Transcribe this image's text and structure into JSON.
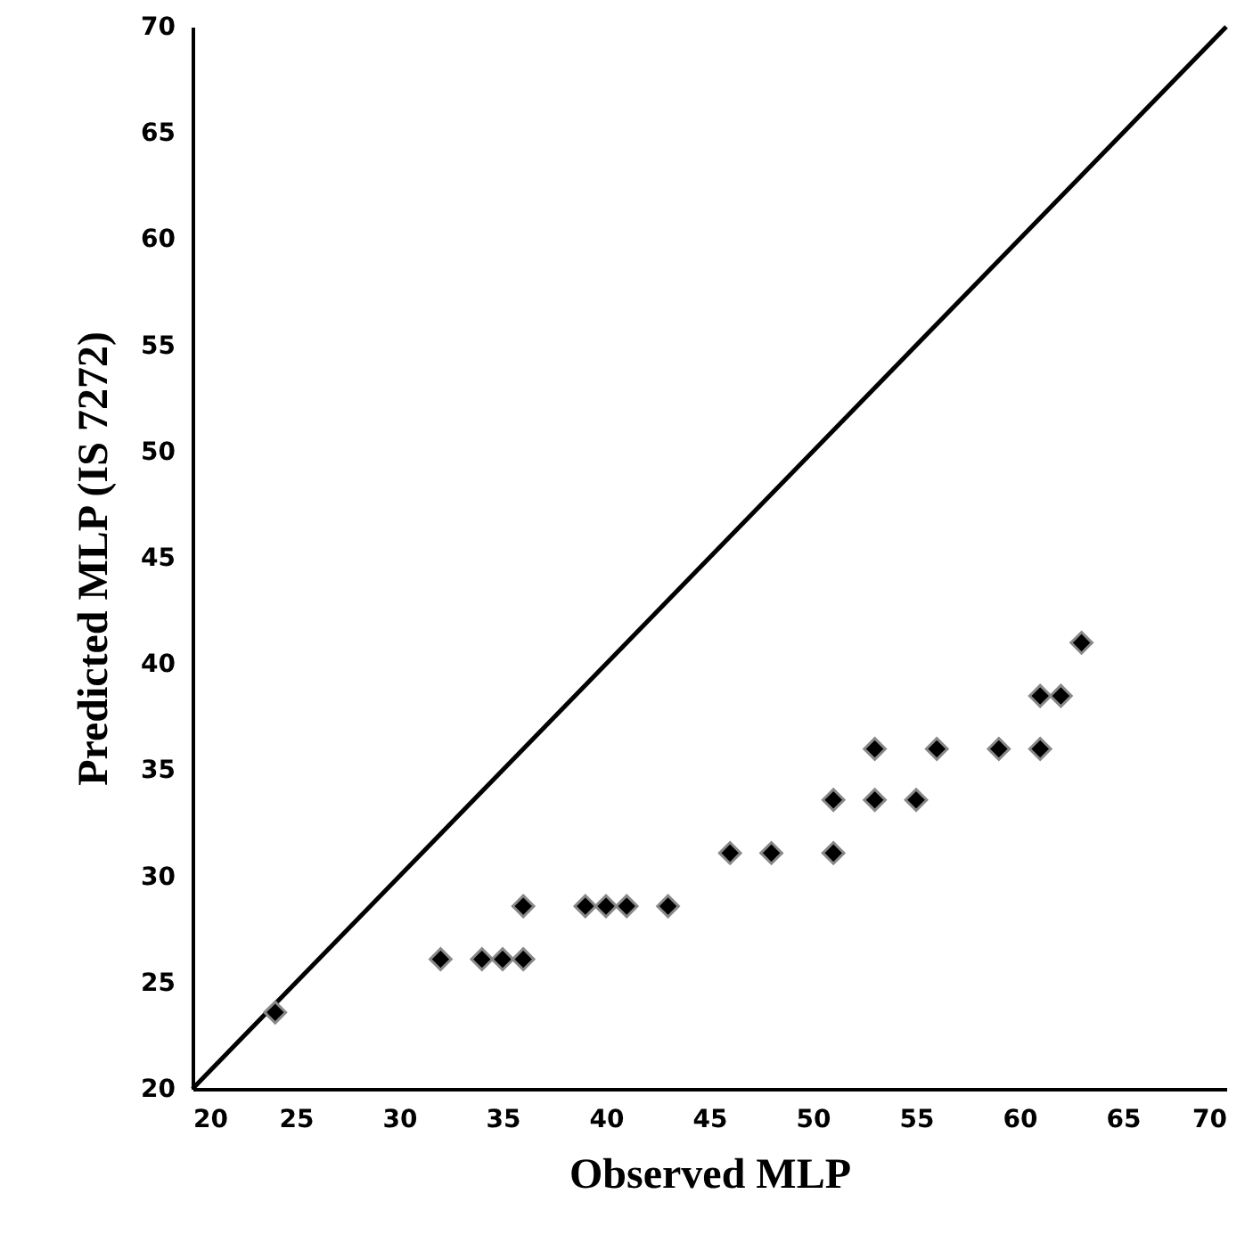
{
  "chart_data": {
    "type": "scatter",
    "xlabel": "Observed MLP",
    "ylabel": "Predicted MLP (IS 7272)",
    "xlim": [
      20,
      70
    ],
    "ylim": [
      20,
      70
    ],
    "xticks": [
      20,
      25,
      30,
      35,
      40,
      45,
      50,
      55,
      60,
      65,
      70
    ],
    "yticks": [
      20,
      25,
      30,
      35,
      40,
      45,
      50,
      55,
      60,
      65,
      70
    ],
    "grid": false,
    "series": [
      {
        "type": "line",
        "color": "#000000",
        "x": [
          20,
          70
        ],
        "values": [
          20,
          70
        ]
      },
      {
        "marker": "diamond",
        "color": "#000000",
        "x": [
          24,
          32,
          34,
          35,
          36,
          36,
          39,
          40,
          41,
          43,
          46,
          48,
          51,
          51,
          53,
          53,
          55,
          56,
          59,
          61,
          61,
          62,
          63
        ],
        "values": [
          23.6,
          26.1,
          26.1,
          26.1,
          26.1,
          28.6,
          28.6,
          28.6,
          28.6,
          28.6,
          31.1,
          31.1,
          31.1,
          33.6,
          33.6,
          36.0,
          33.6,
          36.0,
          36.0,
          36.0,
          38.5,
          38.5,
          41.0
        ]
      }
    ]
  }
}
